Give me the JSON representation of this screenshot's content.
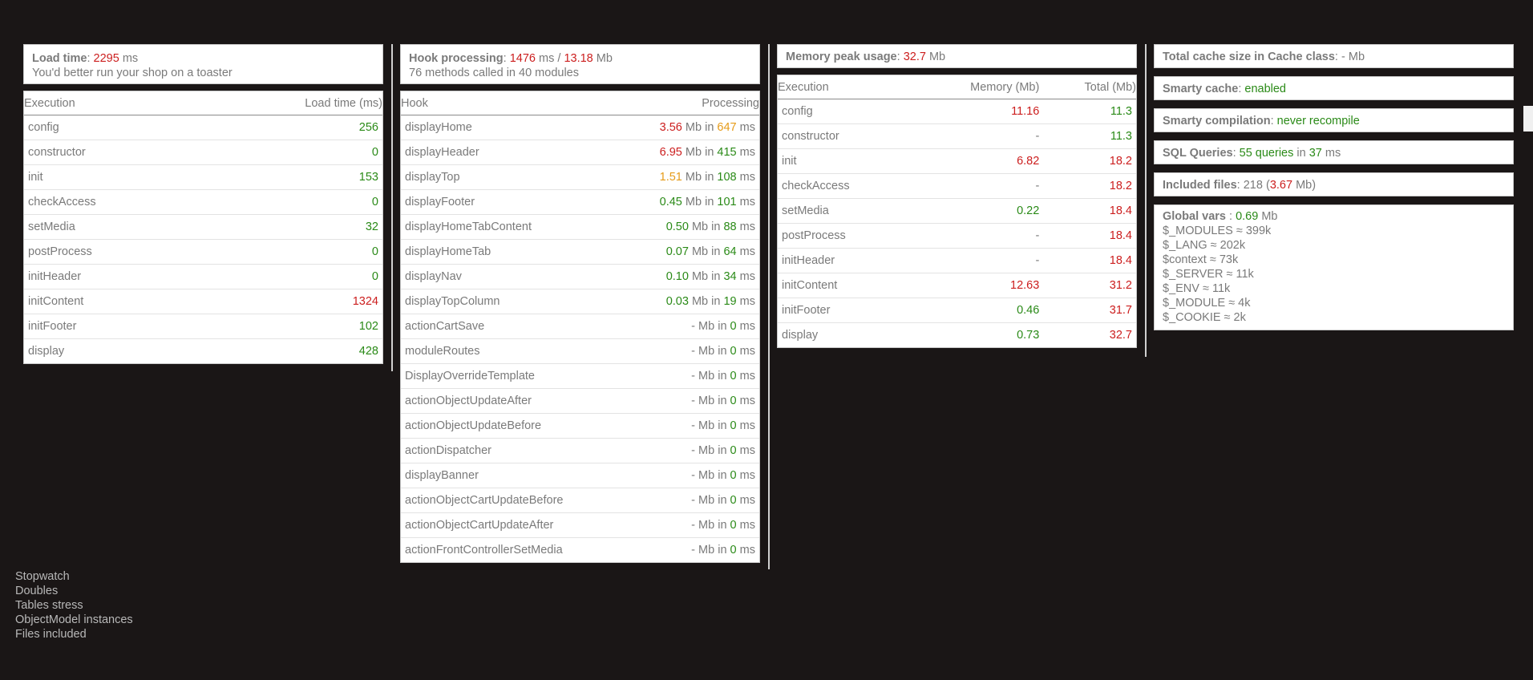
{
  "colors": {
    "good": "#2a8a17",
    "bad": "#cc1e1e",
    "warn": "#e69b18"
  },
  "load": {
    "label": "Load time",
    "value": "2295",
    "unit": "ms",
    "message": "You'd better run your shop on a toaster",
    "headers": [
      "Execution",
      "Load time (ms)"
    ],
    "rows": [
      {
        "name": "config",
        "value": "256",
        "c": "g"
      },
      {
        "name": "constructor",
        "value": "0",
        "c": "g"
      },
      {
        "name": "init",
        "value": "153",
        "c": "g"
      },
      {
        "name": "checkAccess",
        "value": "0",
        "c": "g"
      },
      {
        "name": "setMedia",
        "value": "32",
        "c": "g"
      },
      {
        "name": "postProcess",
        "value": "0",
        "c": "g"
      },
      {
        "name": "initHeader",
        "value": "0",
        "c": "g"
      },
      {
        "name": "initContent",
        "value": "1324",
        "c": "red"
      },
      {
        "name": "initFooter",
        "value": "102",
        "c": "g"
      },
      {
        "name": "display",
        "value": "428",
        "c": "g"
      }
    ]
  },
  "hooks": {
    "label": "Hook processing",
    "ms": "1476",
    "ms_unit": "ms",
    "sep": "/",
    "mb": "13.18",
    "mb_unit": "Mb",
    "message": "76 methods called in 40 modules",
    "headers": [
      "Hook",
      "Processing"
    ],
    "rows": [
      {
        "name": "displayHome",
        "mem": "3.56",
        "mc": "red",
        "time": "647",
        "tc": "o"
      },
      {
        "name": "displayHeader",
        "mem": "6.95",
        "mc": "red",
        "time": "415",
        "tc": "g"
      },
      {
        "name": "displayTop",
        "mem": "1.51",
        "mc": "o",
        "time": "108",
        "tc": "g"
      },
      {
        "name": "displayFooter",
        "mem": "0.45",
        "mc": "g",
        "time": "101",
        "tc": "g"
      },
      {
        "name": "displayHomeTabContent",
        "mem": "0.50",
        "mc": "g",
        "time": "88",
        "tc": "g"
      },
      {
        "name": "displayHomeTab",
        "mem": "0.07",
        "mc": "g",
        "time": "64",
        "tc": "g"
      },
      {
        "name": "displayNav",
        "mem": "0.10",
        "mc": "g",
        "time": "34",
        "tc": "g"
      },
      {
        "name": "displayTopColumn",
        "mem": "0.03",
        "mc": "g",
        "time": "19",
        "tc": "g"
      },
      {
        "name": "actionCartSave",
        "mem": "-",
        "mc": "",
        "time": "0",
        "tc": "g"
      },
      {
        "name": "moduleRoutes",
        "mem": "-",
        "mc": "",
        "time": "0",
        "tc": "g"
      },
      {
        "name": "DisplayOverrideTemplate",
        "mem": "-",
        "mc": "",
        "time": "0",
        "tc": "g"
      },
      {
        "name": "actionObjectUpdateAfter",
        "mem": "-",
        "mc": "",
        "time": "0",
        "tc": "g"
      },
      {
        "name": "actionObjectUpdateBefore",
        "mem": "-",
        "mc": "",
        "time": "0",
        "tc": "g"
      },
      {
        "name": "actionDispatcher",
        "mem": "-",
        "mc": "",
        "time": "0",
        "tc": "g"
      },
      {
        "name": "displayBanner",
        "mem": "-",
        "mc": "",
        "time": "0",
        "tc": "g"
      },
      {
        "name": "actionObjectCartUpdateBefore",
        "mem": "-",
        "mc": "",
        "time": "0",
        "tc": "g"
      },
      {
        "name": "actionObjectCartUpdateAfter",
        "mem": "-",
        "mc": "",
        "time": "0",
        "tc": "g"
      },
      {
        "name": "actionFrontControllerSetMedia",
        "mem": "-",
        "mc": "",
        "time": "0",
        "tc": "g"
      }
    ],
    "mb_word": "Mb",
    "in_word": "in",
    "ms_word": "ms"
  },
  "memory": {
    "label": "Memory peak usage",
    "value": "32.7",
    "unit": "Mb",
    "headers": [
      "Execution",
      "Memory (Mb)",
      "Total (Mb)"
    ],
    "rows": [
      {
        "name": "config",
        "mem": "11.16",
        "mc": "red",
        "total": "11.3",
        "tc": "g"
      },
      {
        "name": "constructor",
        "mem": "-",
        "mc": "",
        "total": "11.3",
        "tc": "g"
      },
      {
        "name": "init",
        "mem": "6.82",
        "mc": "red",
        "total": "18.2",
        "tc": "red"
      },
      {
        "name": "checkAccess",
        "mem": "-",
        "mc": "",
        "total": "18.2",
        "tc": "red"
      },
      {
        "name": "setMedia",
        "mem": "0.22",
        "mc": "g",
        "total": "18.4",
        "tc": "red"
      },
      {
        "name": "postProcess",
        "mem": "-",
        "mc": "",
        "total": "18.4",
        "tc": "red"
      },
      {
        "name": "initHeader",
        "mem": "-",
        "mc": "",
        "total": "18.4",
        "tc": "red"
      },
      {
        "name": "initContent",
        "mem": "12.63",
        "mc": "red",
        "total": "31.2",
        "tc": "red"
      },
      {
        "name": "initFooter",
        "mem": "0.46",
        "mc": "g",
        "total": "31.7",
        "tc": "red"
      },
      {
        "name": "display",
        "mem": "0.73",
        "mc": "g",
        "total": "32.7",
        "tc": "red"
      }
    ]
  },
  "cache": {
    "total_label": "Total cache size in Cache class",
    "total_value": "-",
    "total_unit": "Mb",
    "smarty_cache_label": "Smarty cache",
    "smarty_cache_value": "enabled",
    "smarty_comp_label": "Smarty compilation",
    "smarty_comp_value": "never recompile",
    "sql_label": "SQL Queries",
    "sql_count": "55 queries",
    "sql_in": "in",
    "sql_ms": "37",
    "sql_unit": "ms",
    "files_label": "Included files",
    "files_count": "218",
    "files_open": "(",
    "files_mb": "3.67",
    "files_close": "Mb)",
    "gv_label": "Global vars",
    "gv_value": "0.69",
    "gv_unit": "Mb",
    "gv_items": [
      "$_MODULES ≈ 399k",
      "$_LANG ≈ 202k",
      "$context ≈ 73k",
      "$_SERVER ≈ 11k",
      "$_ENV ≈ 11k",
      "$_MODULE ≈ 4k",
      "$_COOKIE ≈ 2k"
    ]
  },
  "links": [
    "Stopwatch",
    "Doubles",
    "Tables stress",
    "ObjectModel instances",
    "Files included"
  ]
}
